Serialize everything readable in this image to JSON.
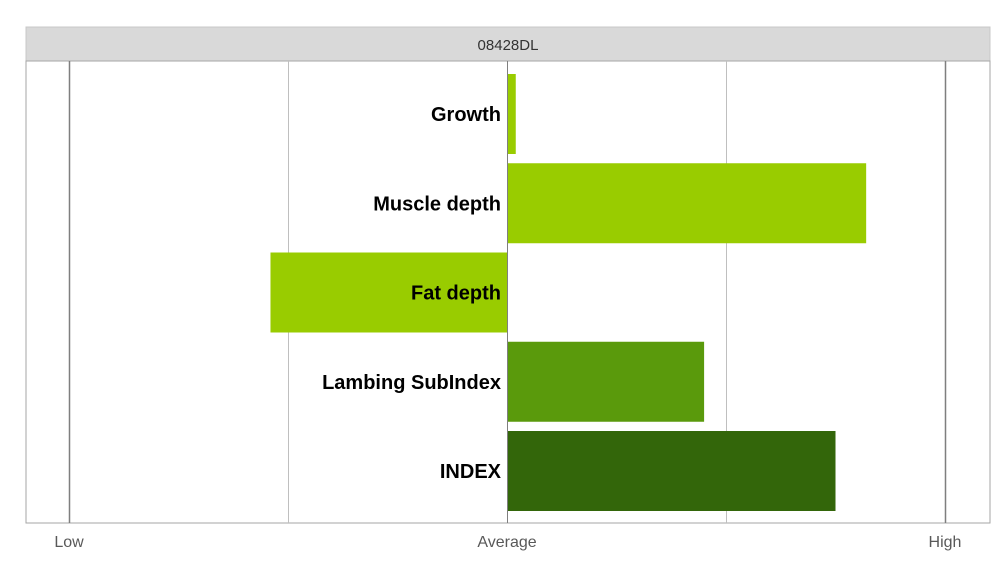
{
  "chart_data": {
    "type": "bar",
    "orientation": "horizontal",
    "title": "08428DL",
    "categories": [
      "Growth",
      "Muscle depth",
      "Fat depth",
      "Lambing SubIndex",
      "INDEX"
    ],
    "values": [
      0.02,
      0.82,
      -0.54,
      0.45,
      0.75
    ],
    "colors": [
      "#99CC00",
      "#99CC00",
      "#99CC00",
      "#5A9A0C",
      "#33660A"
    ],
    "xlim": [
      -1,
      1
    ],
    "x_tick_labels": [
      {
        "value": -1,
        "label": "Low"
      },
      {
        "value": 0,
        "label": "Average"
      },
      {
        "value": 1,
        "label": "High"
      }
    ],
    "x_gridlines": [
      -1,
      -0.5,
      0,
      0.5,
      1
    ],
    "grid": true,
    "legend": "none"
  },
  "colors": {
    "header_bg": "#D9D9D9",
    "grid": "#BFBFBF",
    "grid_major": "#7F7F7F",
    "frame": "#A6A6A6"
  }
}
